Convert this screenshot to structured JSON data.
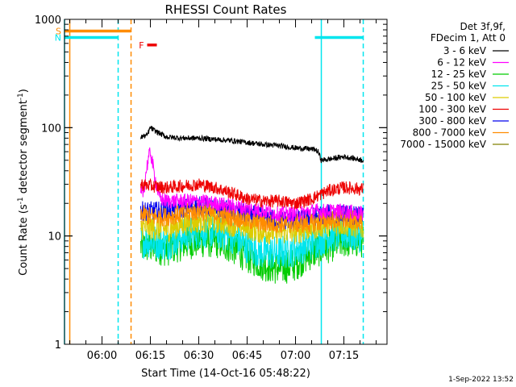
{
  "chart_data": {
    "type": "line",
    "title": "RHESSI Count Rates",
    "xlabel": "Start Time (14-Oct-16 05:48:22)",
    "ylabel_parts": [
      "Count Rate (s",
      "-1",
      " detector segment",
      "-1",
      ")"
    ],
    "yscale": "log",
    "ylim": [
      1,
      1000
    ],
    "xlim": [
      "05:48:22",
      "07:28:22"
    ],
    "x_ticks": [
      "06:00",
      "06:15",
      "06:30",
      "06:45",
      "07:00",
      "07:15"
    ],
    "y_ticks": [
      "1",
      "10",
      "100",
      "1000"
    ],
    "legend_header": [
      "Det 3f,9f,",
      "FDecim 1, Att 0"
    ],
    "footer": "1-Sep-2022 13:52",
    "colors": {
      "text": "#000000",
      "cyan": "#00e5ee",
      "orange": "#ff8c00",
      "red": "#ee0000"
    },
    "series": [
      {
        "name": "3 - 6 keV",
        "color": "#000000",
        "x": [
          "06:12",
          "06:14",
          "06:15",
          "06:16",
          "06:18",
          "06:20",
          "06:25",
          "06:30",
          "06:35",
          "06:40",
          "06:45",
          "06:50",
          "06:55",
          "07:00",
          "07:03",
          "07:06",
          "07:07",
          "07:08",
          "07:12",
          "07:15",
          "07:18",
          "07:21"
        ],
        "values": [
          82,
          85,
          100,
          95,
          88,
          82,
          80,
          80,
          78,
          76,
          73,
          70,
          68,
          65,
          64,
          63,
          60,
          50,
          52,
          54,
          52,
          50
        ]
      },
      {
        "name": "6 - 12 keV",
        "color": "#ff00ff",
        "x": [
          "06:12",
          "06:13",
          "06:14",
          "06:15",
          "06:16",
          "06:17",
          "06:18",
          "06:20",
          "06:25",
          "06:30",
          "06:35",
          "06:40",
          "06:45",
          "06:50",
          "06:55",
          "07:00",
          "07:05",
          "07:10",
          "07:15",
          "07:21"
        ],
        "values": [
          24,
          26,
          45,
          60,
          40,
          28,
          22,
          21,
          21,
          21,
          20,
          19,
          18,
          17,
          16,
          16,
          17,
          17,
          17,
          16
        ]
      },
      {
        "name": "12 - 25 keV",
        "color": "#00cc00",
        "x": [
          "06:12",
          "06:15",
          "06:20",
          "06:25",
          "06:30",
          "06:35",
          "06:40",
          "06:45",
          "06:50",
          "06:55",
          "07:00",
          "07:05",
          "07:10",
          "07:15",
          "07:21"
        ],
        "values": [
          8,
          8,
          7.5,
          8.5,
          9,
          9,
          8,
          6.5,
          5.5,
          5,
          5.5,
          7,
          8,
          9,
          9
        ]
      },
      {
        "name": "25 - 50 keV",
        "color": "#00e5ee",
        "x": [
          "06:12",
          "06:15",
          "06:20",
          "06:25",
          "06:30",
          "06:35",
          "06:40",
          "06:45",
          "06:50",
          "06:55",
          "07:00",
          "07:05",
          "07:10",
          "07:15",
          "07:21"
        ],
        "values": [
          9,
          9,
          8.5,
          10,
          11,
          11,
          10,
          8,
          7,
          7,
          7.5,
          8.5,
          10,
          10.5,
          10
        ]
      },
      {
        "name": "50 - 100 keV",
        "color": "#ddcc00",
        "x": [
          "06:12",
          "06:15",
          "06:20",
          "06:25",
          "06:30",
          "06:35",
          "06:40",
          "06:45",
          "06:50",
          "06:55",
          "07:00",
          "07:05",
          "07:10",
          "07:15",
          "07:21"
        ],
        "values": [
          12,
          12,
          11.5,
          13,
          14,
          14,
          13,
          12,
          11,
          11,
          11,
          12,
          13,
          13,
          12
        ]
      },
      {
        "name": "100 - 300 keV",
        "color": "#ee0000",
        "x": [
          "06:12",
          "06:15",
          "06:20",
          "06:25",
          "06:30",
          "06:35",
          "06:40",
          "06:45",
          "06:50",
          "06:55",
          "07:00",
          "07:05",
          "07:10",
          "07:15",
          "07:21"
        ],
        "values": [
          30,
          29,
          28,
          29,
          30,
          28,
          25,
          22,
          21,
          21,
          20,
          22,
          26,
          28,
          27
        ]
      },
      {
        "name": "300 - 800 keV",
        "color": "#0000ee",
        "x": [
          "06:12",
          "06:15",
          "06:20",
          "06:25",
          "06:30",
          "06:35",
          "06:40",
          "06:45",
          "06:50",
          "06:55",
          "07:00",
          "07:05",
          "07:10",
          "07:15",
          "07:21"
        ],
        "values": [
          17,
          17,
          17,
          18,
          19,
          18,
          17,
          16,
          15,
          14,
          14,
          15,
          16,
          16,
          15
        ]
      },
      {
        "name": "800 - 7000 keV",
        "color": "#ff8c00",
        "x": [
          "06:12",
          "06:15",
          "06:20",
          "06:25",
          "06:30",
          "06:35",
          "06:40",
          "06:45",
          "06:50",
          "06:55",
          "07:00",
          "07:05",
          "07:10",
          "07:15",
          "07:21"
        ],
        "values": [
          16,
          15,
          15,
          16,
          17,
          16,
          15,
          14,
          13,
          13,
          13,
          13,
          14,
          14,
          14
        ]
      },
      {
        "name": "7000 - 15000 keV",
        "color": "#808000",
        "x": [],
        "values": []
      }
    ],
    "annotations": [
      {
        "label": "S",
        "color": "#ff8c00",
        "x_start": "05:48:22",
        "x_end": "06:09",
        "y": 780
      },
      {
        "label": "N",
        "color": "#00e5ee",
        "x_start": "05:48:22",
        "x_end": "06:05",
        "y": 680
      },
      {
        "label": "N",
        "color": "#00e5ee",
        "x_start": "07:06",
        "x_end": "07:21",
        "y": 680,
        "show_label": false
      },
      {
        "label": "F",
        "color": "#ee0000",
        "x_start": "06:14",
        "x_end": "06:17",
        "y": 580
      }
    ],
    "vlines": [
      {
        "x": "05:48:22",
        "color": "#00e5ee",
        "style": "solid"
      },
      {
        "x": "05:50",
        "color": "#ff8c00",
        "style": "solid"
      },
      {
        "x": "06:05",
        "color": "#00e5ee",
        "style": "dashed"
      },
      {
        "x": "06:09",
        "color": "#ff8c00",
        "style": "dashed"
      },
      {
        "x": "07:08",
        "color": "#00e5ee",
        "style": "solid"
      },
      {
        "x": "07:21",
        "color": "#00e5ee",
        "style": "dashed"
      }
    ]
  }
}
